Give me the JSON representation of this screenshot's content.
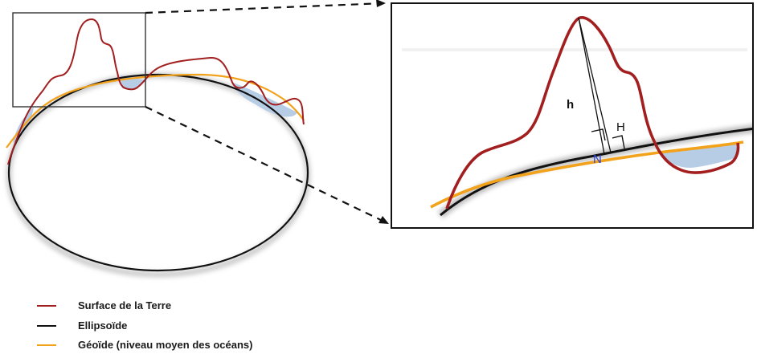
{
  "colors": {
    "surface": "#a31f1f",
    "ellipsoid": "#111111",
    "geoid": "#f2a21b",
    "fill_area": "#b7cde6",
    "label_n": "#2a3fd6"
  },
  "zoom_labels": {
    "h": "h",
    "H": "H",
    "N": "N"
  },
  "legend": [
    {
      "key": "surface",
      "label": "Surface de la Terre"
    },
    {
      "key": "ellipsoid",
      "label": "Ellipsoïde"
    },
    {
      "key": "geoid",
      "label": "Géoïde (niveau moyen des océans)"
    }
  ]
}
